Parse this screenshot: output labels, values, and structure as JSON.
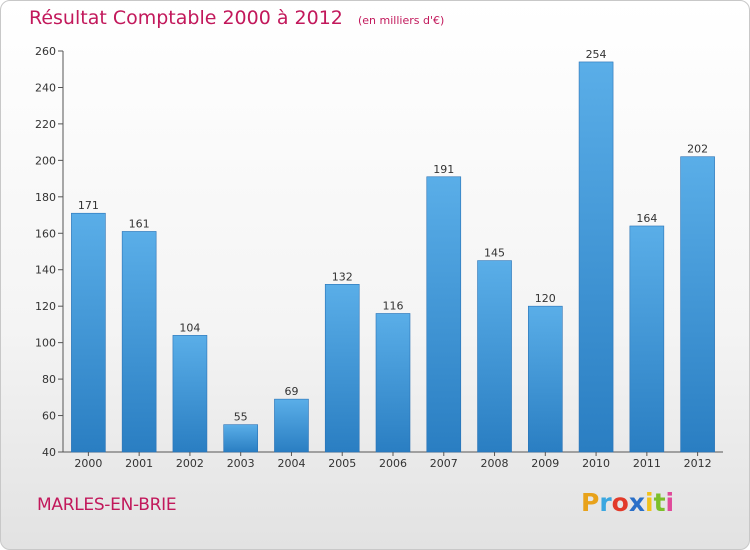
{
  "header": {
    "title": "Résultat Comptable 2000 à 2012",
    "subtitle": "(en milliers d'€)"
  },
  "commune": "MARLES-EN-BRIE",
  "logo": {
    "letters": [
      "P",
      "r",
      "o",
      "x",
      "i",
      "t",
      "i"
    ],
    "colors": [
      "#e8a21a",
      "#3aa7e0",
      "#e23a2a",
      "#2a6fc8",
      "#f2c21a",
      "#7cbf2a",
      "#e04a9a"
    ]
  },
  "colors": {
    "bar_light": "#5aaee8",
    "bar_dark": "#2a7ec2",
    "accent": "#c2185b"
  },
  "chart_data": {
    "type": "bar",
    "title": "Résultat Comptable 2000 à 2012",
    "subtitle": "(en milliers d'€)",
    "categories": [
      "2000",
      "2001",
      "2002",
      "2003",
      "2004",
      "2005",
      "2006",
      "2007",
      "2008",
      "2009",
      "2010",
      "2011",
      "2012"
    ],
    "values": [
      171,
      161,
      104,
      55,
      69,
      132,
      116,
      191,
      145,
      120,
      254,
      164,
      202
    ],
    "ylim": [
      40,
      260
    ],
    "yticks": [
      40,
      60,
      80,
      100,
      120,
      140,
      160,
      180,
      200,
      220,
      240,
      260
    ],
    "grid": false,
    "legend": "none"
  }
}
